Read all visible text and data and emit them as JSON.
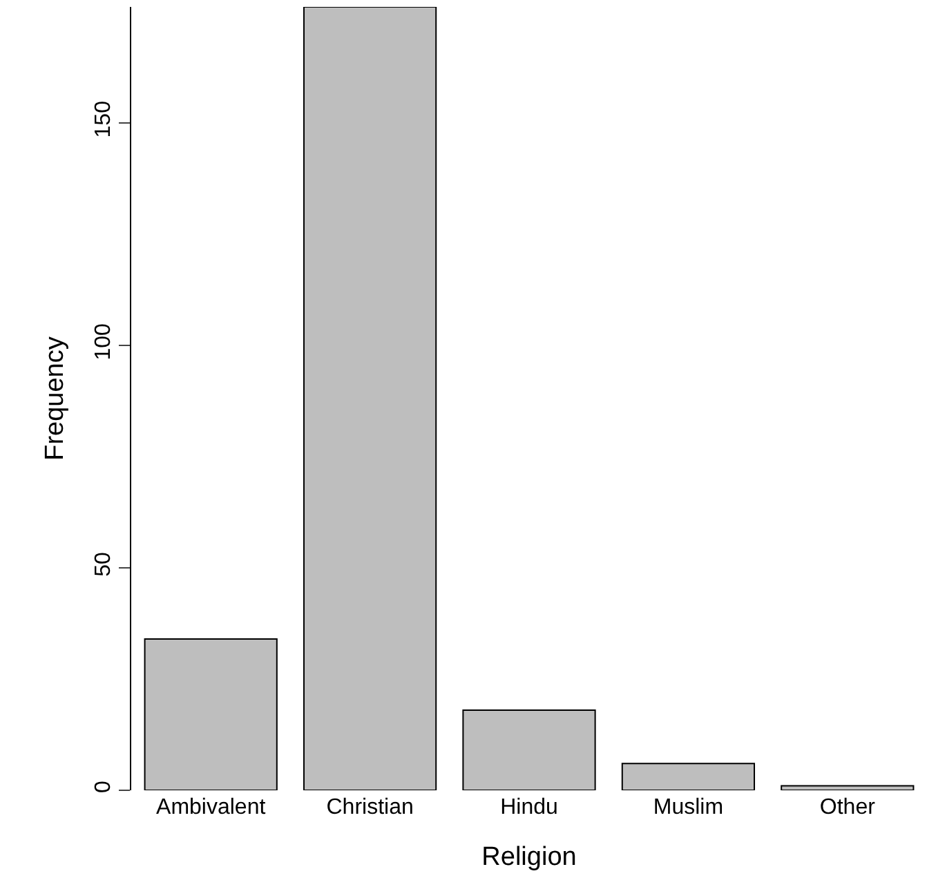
{
  "chart_data": {
    "type": "bar",
    "xlabel": "Religion",
    "ylabel": "Frequency",
    "categories": [
      "Ambivalent",
      "Christian",
      "Hindu",
      "Muslim",
      "Other"
    ],
    "values": [
      34,
      176,
      18,
      6,
      1
    ],
    "color": "#bebebe",
    "ylim": [
      0,
      176
    ],
    "yticks": [
      0,
      50,
      100,
      150
    ]
  }
}
